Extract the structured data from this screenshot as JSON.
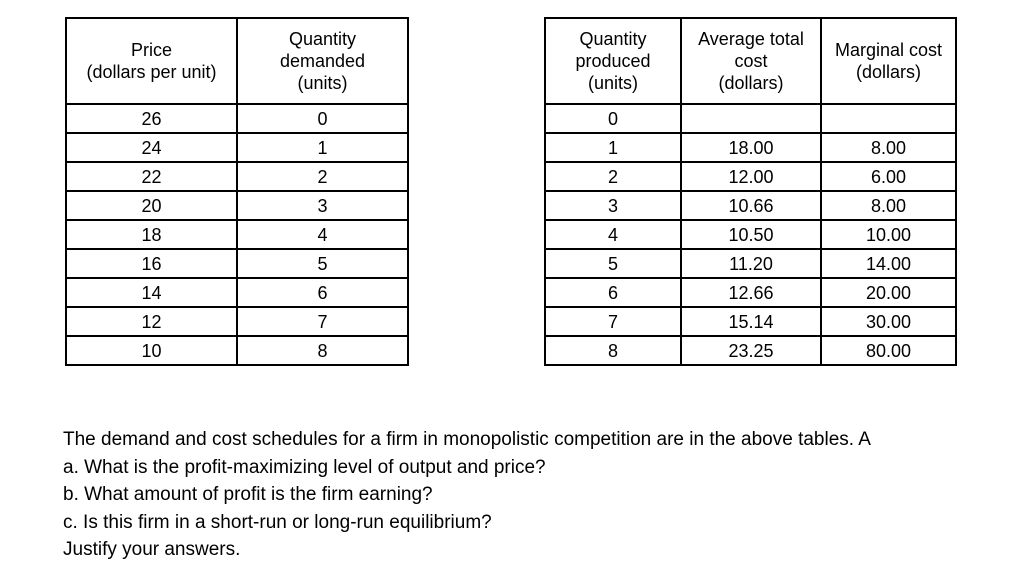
{
  "demand_table": {
    "headers": {
      "price": "Price\n(dollars per unit)",
      "quantity_demanded": "Quantity\ndemanded\n(units)"
    },
    "rows": [
      [
        "26",
        "0"
      ],
      [
        "24",
        "1"
      ],
      [
        "22",
        "2"
      ],
      [
        "20",
        "3"
      ],
      [
        "18",
        "4"
      ],
      [
        "16",
        "5"
      ],
      [
        "14",
        "6"
      ],
      [
        "12",
        "7"
      ],
      [
        "10",
        "8"
      ]
    ]
  },
  "cost_table": {
    "headers": {
      "quantity_produced": "Quantity\nproduced\n(units)",
      "average_total_cost": "Average total\ncost\n(dollars)",
      "marginal_cost": "Marginal cost\n(dollars)"
    },
    "rows": [
      [
        "0",
        "",
        ""
      ],
      [
        "1",
        "18.00",
        "8.00"
      ],
      [
        "2",
        "12.00",
        "6.00"
      ],
      [
        "3",
        "10.66",
        "8.00"
      ],
      [
        "4",
        "10.50",
        "10.00"
      ],
      [
        "5",
        "11.20",
        "14.00"
      ],
      [
        "6",
        "12.66",
        "20.00"
      ],
      [
        "7",
        "15.14",
        "30.00"
      ],
      [
        "8",
        "23.25",
        "80.00"
      ]
    ]
  },
  "question": {
    "intro": "The demand and cost schedules for a firm in monopolistic competition are in the above tables. A",
    "item_a": "a. What is the profit-maximizing level of output and price?",
    "item_b": "b. What amount of profit is the firm earning?",
    "item_c": "c. Is this firm in a short-run or long-run equilibrium?",
    "closing": "Justify your answers."
  }
}
